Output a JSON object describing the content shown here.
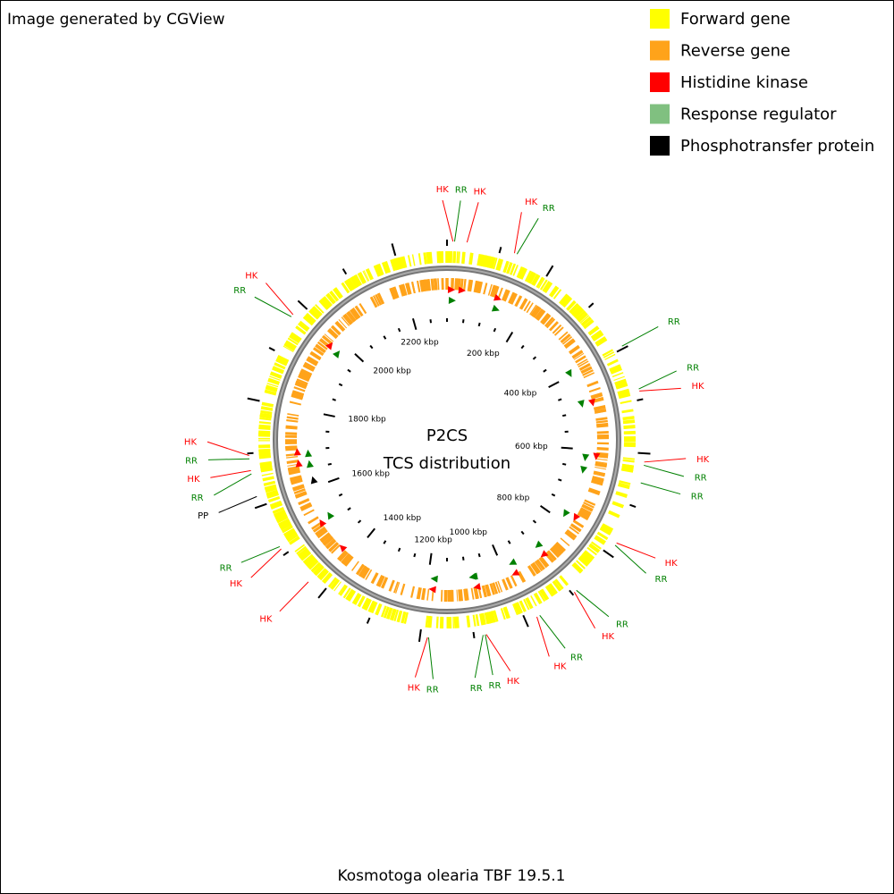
{
  "header": {
    "title": "Image generated by CGView"
  },
  "center": {
    "title": "P2CS",
    "subtitle": "TCS distribution"
  },
  "footer": {
    "organism": "Kosmotoga olearia TBF 19.5.1"
  },
  "scale": {
    "range": [
      0,
      2300
    ],
    "ticks": [
      {
        "value": 200,
        "label": "200 kbp"
      },
      {
        "value": 400,
        "label": "400 kbp"
      },
      {
        "value": 600,
        "label": "600 kbp"
      },
      {
        "value": 800,
        "label": "800 kbp"
      },
      {
        "value": 1000,
        "label": "1000 kbp"
      },
      {
        "value": 1200,
        "label": "1200 kbp"
      },
      {
        "value": 1400,
        "label": "1400 kbp"
      },
      {
        "value": 1600,
        "label": "1600 kbp"
      },
      {
        "value": 1800,
        "label": "1800 kbp"
      },
      {
        "value": 2000,
        "label": "2000 kbp"
      },
      {
        "value": 2200,
        "label": "2200 kbp"
      }
    ]
  },
  "legend": {
    "items": [
      {
        "label": "Forward gene",
        "color": "#ffff00"
      },
      {
        "label": "Reverse gene",
        "color": "#ffa31a"
      },
      {
        "label": "Histidine kinase",
        "color": "#ff0000",
        "feature_color": "#ff0000",
        "features": [
          {
            "label": "HK",
            "position": 11
          },
          {
            "label": "HK",
            "position": 37
          },
          {
            "label": "HK",
            "position": 127
          },
          {
            "label": "HK",
            "position": 484
          },
          {
            "label": "HK",
            "position": 616
          },
          {
            "label": "HK",
            "position": 775
          },
          {
            "label": "HK",
            "position": 895
          },
          {
            "label": "HK",
            "position": 978
          },
          {
            "label": "HK",
            "position": 1077
          },
          {
            "label": "HK",
            "position": 1186
          },
          {
            "label": "HK",
            "position": 1433
          },
          {
            "label": "HK",
            "position": 1512
          },
          {
            "label": "HK",
            "position": 1668
          },
          {
            "label": "HK",
            "position": 1696
          },
          {
            "label": "HK",
            "position": 1975
          }
        ]
      },
      {
        "label": "Response regulator",
        "color": "#80c080",
        "feature_color": "#008000",
        "features": [
          {
            "label": "RR",
            "position": 14
          },
          {
            "label": "RR",
            "position": 132
          },
          {
            "label": "RR",
            "position": 395
          },
          {
            "label": "RR",
            "position": 480
          },
          {
            "label": "RR",
            "position": 622
          },
          {
            "label": "RR",
            "position": 655
          },
          {
            "label": "RR",
            "position": 780
          },
          {
            "label": "RR",
            "position": 890
          },
          {
            "label": "RR",
            "position": 972
          },
          {
            "label": "RR",
            "position": 1079
          },
          {
            "label": "RR",
            "position": 1083
          },
          {
            "label": "RR",
            "position": 1184
          },
          {
            "label": "RR",
            "position": 1517
          },
          {
            "label": "RR",
            "position": 1662
          },
          {
            "label": "RR",
            "position": 1690
          },
          {
            "label": "RR",
            "position": 1970
          }
        ]
      },
      {
        "label": "Phosphotransfer protein",
        "color": "#000000",
        "feature_color": "#000000",
        "features": [
          {
            "label": "PP",
            "position": 1619
          }
        ]
      }
    ]
  }
}
